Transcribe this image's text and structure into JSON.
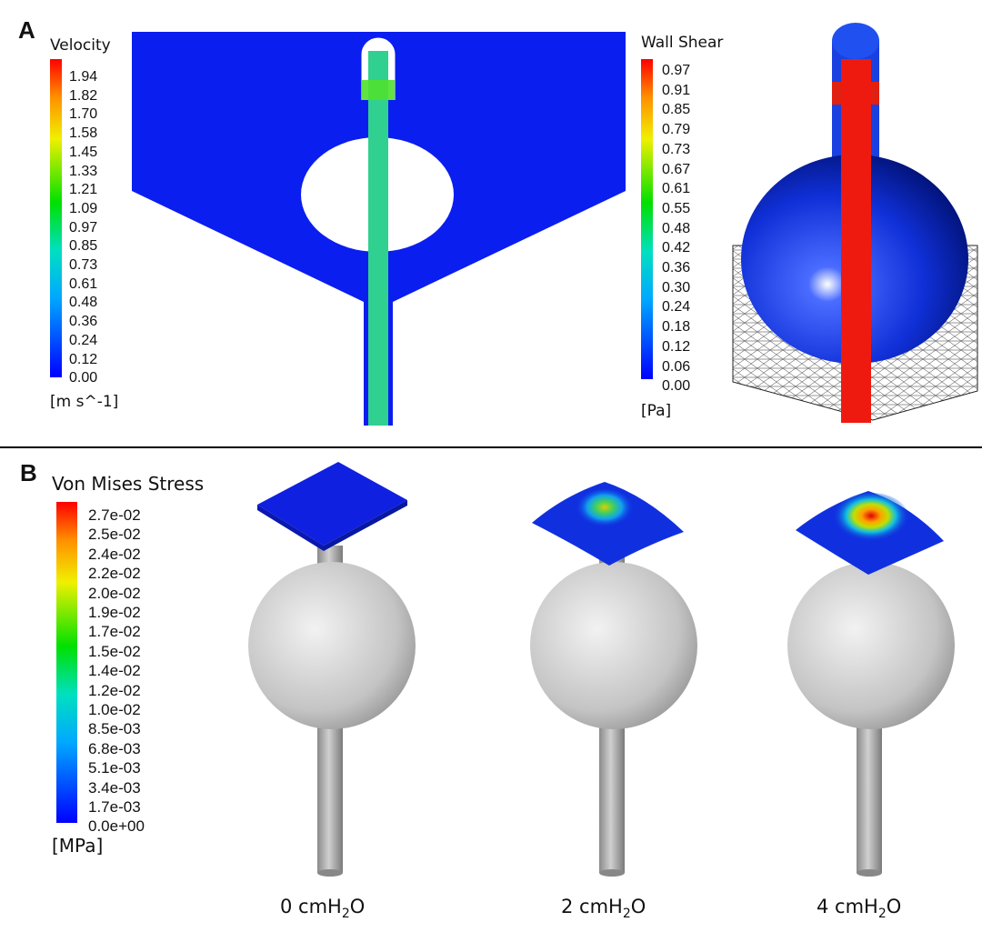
{
  "panel_a": {
    "label": "A",
    "velocity": {
      "title": "Velocity",
      "unit": "[m s^-1]",
      "ticks": [
        "1.94",
        "1.82",
        "1.70",
        "1.58",
        "1.45",
        "1.33",
        "1.21",
        "1.09",
        "0.97",
        "0.85",
        "0.73",
        "0.61",
        "0.48",
        "0.36",
        "0.24",
        "0.12",
        "0.00"
      ]
    },
    "wall_shear": {
      "title": "Wall Shear",
      "unit": "[Pa]",
      "ticks": [
        "0.97",
        "0.91",
        "0.85",
        "0.79",
        "0.73",
        "0.67",
        "0.61",
        "0.55",
        "0.48",
        "0.42",
        "0.36",
        "0.30",
        "0.24",
        "0.18",
        "0.12",
        "0.06",
        "0.00"
      ]
    }
  },
  "panel_b": {
    "label": "B",
    "stress": {
      "title": "Von Mises Stress",
      "unit": "[MPa]",
      "ticks": [
        "2.7e-02",
        "2.5e-02",
        "2.4e-02",
        "2.2e-02",
        "2.0e-02",
        "1.9e-02",
        "1.7e-02",
        "1.5e-02",
        "1.4e-02",
        "1.2e-02",
        "1.0e-02",
        "8.5e-03",
        "6.8e-03",
        "5.1e-03",
        "3.4e-03",
        "1.7e-03",
        "0.0e+00"
      ]
    },
    "captions": [
      {
        "value": "0 cmH",
        "sub": "2",
        "tail": "O"
      },
      {
        "value": "2 cmH",
        "sub": "2",
        "tail": "O"
      },
      {
        "value": "4 cmH",
        "sub": "2",
        "tail": "O"
      }
    ]
  },
  "colors": {
    "jet_low": "#0000ff",
    "jet_mid": "#00ff00",
    "jet_high": "#ff0000",
    "divider": "#000000"
  }
}
